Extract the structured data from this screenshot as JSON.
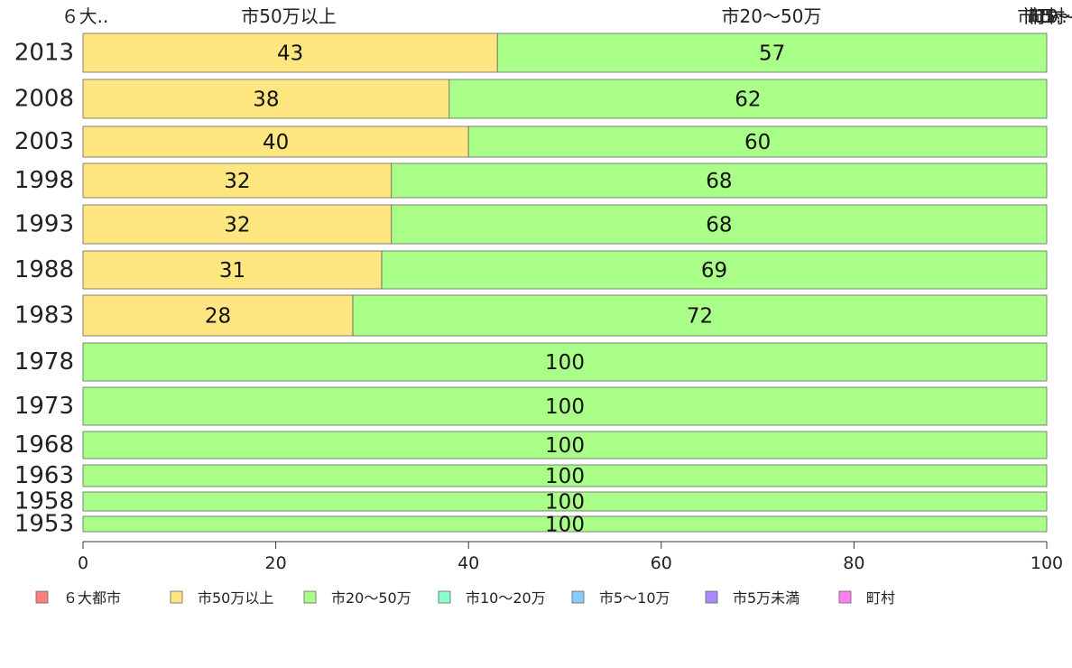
{
  "chart_data": {
    "type": "bar",
    "orientation": "horizontal",
    "stacked": true,
    "top_labels": [
      "６大..",
      "市50万以上",
      "市20〜50万",
      "市10〜",
      "市5〜",
      "市5..",
      "町村"
    ],
    "categories": [
      "2013",
      "2008",
      "2003",
      "1998",
      "1993",
      "1988",
      "1983",
      "1978",
      "1973",
      "1968",
      "1963",
      "1958",
      "1953"
    ],
    "series": [
      {
        "name": "６大都市",
        "color": "#ff8080",
        "values": [
          0,
          0,
          0,
          0,
          0,
          0,
          0,
          0,
          0,
          0,
          0,
          0,
          0
        ]
      },
      {
        "name": "市50万以上",
        "color": "#ffe680",
        "values": [
          43,
          38,
          40,
          32,
          32,
          31,
          28,
          0,
          0,
          0,
          0,
          0,
          0
        ]
      },
      {
        "name": "市20〜50万",
        "color": "#aaff88",
        "values": [
          57,
          62,
          60,
          68,
          68,
          69,
          72,
          100,
          100,
          100,
          100,
          100,
          100
        ]
      },
      {
        "name": "市10〜20万",
        "color": "#88ffcc",
        "values": [
          0,
          0,
          0,
          0,
          0,
          0,
          0,
          0,
          0,
          0,
          0,
          0,
          0
        ]
      },
      {
        "name": "市5〜10万",
        "color": "#88ccff",
        "values": [
          0,
          0,
          0,
          0,
          0,
          0,
          0,
          0,
          0,
          0,
          0,
          0,
          0
        ]
      },
      {
        "name": "市5万未満",
        "color": "#aa88ff",
        "values": [
          0,
          0,
          0,
          0,
          0,
          0,
          0,
          0,
          0,
          0,
          0,
          0,
          0
        ]
      },
      {
        "name": "町村",
        "color": "#ff80ee",
        "values": [
          0,
          0,
          0,
          0,
          0,
          0,
          0,
          0,
          0,
          0,
          0,
          0,
          0
        ]
      }
    ],
    "xlim": [
      0,
      100
    ],
    "xticks": [
      "0",
      "20",
      "40",
      "60",
      "80",
      "100"
    ],
    "grid": false,
    "legend_position": "bottom"
  }
}
